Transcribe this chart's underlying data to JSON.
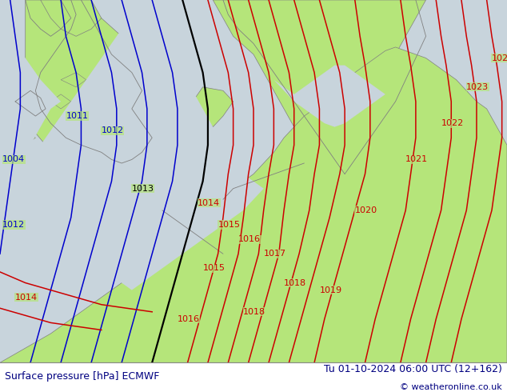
{
  "title_left": "Surface pressure [hPa] ECMWF",
  "title_right": "Tu 01-10-2024 06:00 UTC (12+162)",
  "copyright": "© weatheronline.co.uk",
  "background_color": "#ffffff",
  "land_color": "#b5e57a",
  "sea_color": "#c8d4dc",
  "isobar_blue_color": "#0000cc",
  "isobar_black_color": "#000000",
  "isobar_red_color": "#cc0000",
  "coastline_color": "#808080",
  "font_size_labels": 8,
  "font_size_bottom": 9,
  "font_size_copyright": 8,
  "bottom_text_color": "#000080"
}
